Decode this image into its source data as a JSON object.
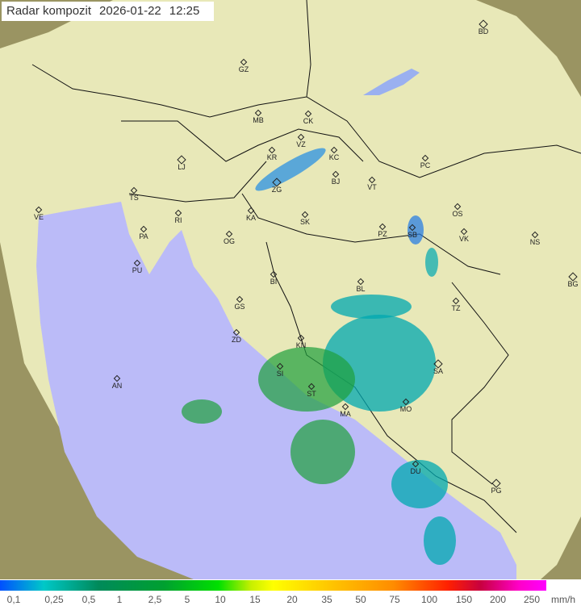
{
  "header": {
    "title": "Radar kompozit",
    "date": "2026-01-22",
    "time": "12:25"
  },
  "cities": [
    {
      "code": "GZ",
      "major": false
    },
    {
      "code": "BD",
      "major": true
    },
    {
      "code": "MB",
      "major": false
    },
    {
      "code": "CK",
      "major": false
    },
    {
      "code": "VZ",
      "major": false
    },
    {
      "code": "KR",
      "major": false
    },
    {
      "code": "KC",
      "major": false
    },
    {
      "code": "PC",
      "major": false
    },
    {
      "code": "LJ",
      "major": true
    },
    {
      "code": "ZG",
      "major": true
    },
    {
      "code": "BJ",
      "major": false
    },
    {
      "code": "VT",
      "major": false
    },
    {
      "code": "TS",
      "major": false
    },
    {
      "code": "VE",
      "major": false
    },
    {
      "code": "RI",
      "major": false
    },
    {
      "code": "KA",
      "major": false
    },
    {
      "code": "SK",
      "major": false
    },
    {
      "code": "OS",
      "major": false
    },
    {
      "code": "PA",
      "major": false
    },
    {
      "code": "PZ",
      "major": false
    },
    {
      "code": "SB",
      "major": false
    },
    {
      "code": "VK",
      "major": false
    },
    {
      "code": "NS",
      "major": false
    },
    {
      "code": "OG",
      "major": false
    },
    {
      "code": "PU",
      "major": false
    },
    {
      "code": "BL",
      "major": false
    },
    {
      "code": "BG",
      "major": true
    },
    {
      "code": "BI",
      "major": false
    },
    {
      "code": "GS",
      "major": false
    },
    {
      "code": "TZ",
      "major": false
    },
    {
      "code": "ZD",
      "major": false
    },
    {
      "code": "KN",
      "major": false
    },
    {
      "code": "SA",
      "major": true
    },
    {
      "code": "SI",
      "major": false
    },
    {
      "code": "AN",
      "major": false
    },
    {
      "code": "ST",
      "major": false
    },
    {
      "code": "MA",
      "major": false
    },
    {
      "code": "MO",
      "major": false
    },
    {
      "code": "DU",
      "major": false
    },
    {
      "code": "PG",
      "major": true
    }
  ],
  "legend": {
    "labels": [
      "0,1",
      "0,25",
      "0,5",
      "1",
      "2,5",
      "5",
      "10",
      "15",
      "20",
      "35",
      "50",
      "75",
      "100",
      "150",
      "200",
      "250"
    ],
    "unit": "mm/h"
  },
  "colors": {
    "land": "#e6e6b4",
    "sea": "#b9b9f5",
    "outside": "#8c8a5a",
    "precip_low": "#1e78e6",
    "precip_mid": "#00b4b4",
    "precip_high": "#1ea03c"
  }
}
